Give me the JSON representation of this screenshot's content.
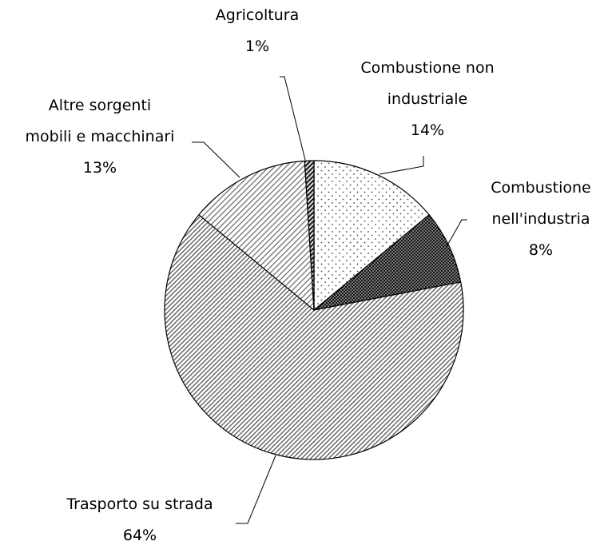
{
  "chart_data": {
    "type": "pie",
    "categories": [
      "Combustione non\nindustriale",
      "Combustione\nnell'industria",
      "Trasporto su strada",
      "Altre sorgenti\nmobili e macchinari",
      "Agricoltura"
    ],
    "values": [
      14,
      8,
      64,
      13,
      1
    ],
    "value_labels": [
      "14%",
      "8%",
      "64%",
      "13%",
      "1%"
    ]
  }
}
